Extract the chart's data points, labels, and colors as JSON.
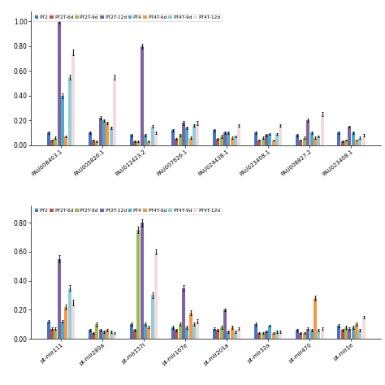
{
  "top_categories": [
    "PAU008403.1",
    "PAU005826.1",
    "PAU012423.2",
    "PAU007626.1",
    "PAU024438.1",
    "PAU023408.1",
    "PAU008827.2",
    "PAU023408.1"
  ],
  "top_data": {
    "PT2": [
      0.1,
      0.1,
      0.08,
      0.12,
      0.12,
      0.1,
      0.08,
      0.1
    ],
    "PT2T-6d": [
      0.04,
      0.04,
      0.03,
      0.05,
      0.05,
      0.04,
      0.04,
      0.03
    ],
    "PT2T-9d": [
      0.06,
      0.03,
      0.03,
      0.08,
      0.07,
      0.06,
      0.06,
      0.04
    ],
    "PT2T-12d": [
      1.0,
      0.22,
      0.8,
      0.18,
      0.1,
      0.08,
      0.2,
      0.15
    ],
    "PT4": [
      0.4,
      0.2,
      0.08,
      0.14,
      0.1,
      0.09,
      0.1,
      0.1
    ],
    "PT4T-6d": [
      0.07,
      0.18,
      0.03,
      0.06,
      0.06,
      0.04,
      0.06,
      0.04
    ],
    "PT4T-9d": [
      0.55,
      0.14,
      0.15,
      0.16,
      0.07,
      0.09,
      0.07,
      0.06
    ],
    "PT4T-12d": [
      0.75,
      0.55,
      0.1,
      0.18,
      0.16,
      0.16,
      0.25,
      0.08
    ]
  },
  "top_errors": {
    "PT2": [
      0.01,
      0.01,
      0.01,
      0.01,
      0.01,
      0.01,
      0.01,
      0.01
    ],
    "PT2T-6d": [
      0.005,
      0.005,
      0.005,
      0.005,
      0.005,
      0.005,
      0.005,
      0.005
    ],
    "PT2T-9d": [
      0.01,
      0.005,
      0.005,
      0.01,
      0.01,
      0.01,
      0.01,
      0.005
    ],
    "PT2T-12d": [
      0.02,
      0.015,
      0.018,
      0.015,
      0.008,
      0.008,
      0.015,
      0.008
    ],
    "PT4": [
      0.018,
      0.01,
      0.008,
      0.01,
      0.008,
      0.008,
      0.008,
      0.008
    ],
    "PT4T-6d": [
      0.008,
      0.01,
      0.005,
      0.008,
      0.008,
      0.005,
      0.008,
      0.005
    ],
    "PT4T-9d": [
      0.02,
      0.01,
      0.01,
      0.01,
      0.008,
      0.008,
      0.008,
      0.008
    ],
    "PT4T-12d": [
      0.02,
      0.02,
      0.01,
      0.015,
      0.01,
      0.01,
      0.015,
      0.008
    ]
  },
  "bottom_categories": [
    "pt-mir111",
    "pt-mir280a",
    "pt-mir157i",
    "pt-mir167e",
    "pt-mir201a",
    "pt-mir32a",
    "pt-mir470",
    "pt-mir1e"
  ],
  "bottom_data": {
    "PT2": [
      0.12,
      0.06,
      0.1,
      0.08,
      0.07,
      0.1,
      0.06,
      0.09
    ],
    "PT2T-6d": [
      0.07,
      0.04,
      0.06,
      0.06,
      0.06,
      0.04,
      0.04,
      0.06
    ],
    "PT2T-9d": [
      0.07,
      0.1,
      0.75,
      0.1,
      0.08,
      0.04,
      0.04,
      0.08
    ],
    "PT2T-12d": [
      0.55,
      0.06,
      0.8,
      0.35,
      0.2,
      0.05,
      0.07,
      0.07
    ],
    "PT4": [
      0.12,
      0.05,
      0.1,
      0.08,
      0.05,
      0.09,
      0.06,
      0.08
    ],
    "PT4T-6d": [
      0.22,
      0.06,
      0.08,
      0.18,
      0.08,
      0.04,
      0.28,
      0.1
    ],
    "PT4T-9d": [
      0.35,
      0.05,
      0.3,
      0.1,
      0.05,
      0.05,
      0.06,
      0.06
    ],
    "PT4T-12d": [
      0.25,
      0.04,
      0.6,
      0.12,
      0.07,
      0.05,
      0.07,
      0.15
    ]
  },
  "bottom_errors": {
    "PT2": [
      0.01,
      0.008,
      0.01,
      0.01,
      0.008,
      0.01,
      0.008,
      0.01
    ],
    "PT2T-6d": [
      0.008,
      0.005,
      0.008,
      0.008,
      0.008,
      0.005,
      0.005,
      0.008
    ],
    "PT2T-9d": [
      0.008,
      0.015,
      0.02,
      0.01,
      0.01,
      0.005,
      0.005,
      0.01
    ],
    "PT2T-12d": [
      0.025,
      0.008,
      0.025,
      0.02,
      0.01,
      0.005,
      0.008,
      0.008
    ],
    "PT4": [
      0.01,
      0.008,
      0.01,
      0.01,
      0.008,
      0.008,
      0.008,
      0.01
    ],
    "PT4T-6d": [
      0.018,
      0.008,
      0.008,
      0.018,
      0.01,
      0.005,
      0.018,
      0.01
    ],
    "PT4T-9d": [
      0.02,
      0.008,
      0.018,
      0.01,
      0.008,
      0.008,
      0.008,
      0.008
    ],
    "PT4T-12d": [
      0.018,
      0.005,
      0.018,
      0.015,
      0.008,
      0.008,
      0.008,
      0.01
    ]
  },
  "series_names": [
    "PT2",
    "PT2T-6d",
    "PT2T-9d",
    "PT2T-12d",
    "PT4",
    "PT4T-6d",
    "PT4T-9d",
    "PT4T-12d"
  ],
  "colors": [
    "#4472C4",
    "#C0504D",
    "#9BBB59",
    "#8064A2",
    "#4BACC6",
    "#F79646",
    "#92CDDC",
    "#F2DCDB"
  ],
  "bg_color": "#FFFFFF",
  "plot_bg": "#FFFFFF"
}
